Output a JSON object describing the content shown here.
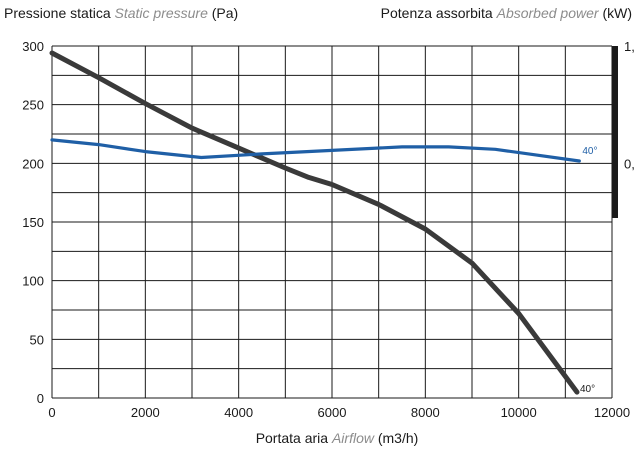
{
  "chart_data": {
    "type": "line",
    "left_axis_label": {
      "it": "Pressione statica",
      "en": "Static pressure",
      "unit": "(Pa)"
    },
    "right_axis_label": {
      "it": "Potenza assorbita",
      "en": "Absorbed power",
      "unit": "(kW)"
    },
    "x_axis_label": {
      "it": "Portata aria",
      "en": "Airflow",
      "unit": "(m3/h)"
    },
    "xlim": [
      0,
      12000
    ],
    "ylim": [
      0,
      300
    ],
    "x_ticks": [
      "0",
      "2000",
      "4000",
      "6000",
      "8000",
      "10000",
      "12000"
    ],
    "y_ticks": [
      "0",
      "50",
      "100",
      "150",
      "200",
      "250",
      "300"
    ],
    "right_ticks": [
      "1,",
      "0,"
    ],
    "grid": true,
    "series": [
      {
        "name": "40°",
        "axis": "left",
        "color": "#3a3a3a",
        "points": [
          [
            0,
            294
          ],
          [
            1000,
            273
          ],
          [
            2000,
            251
          ],
          [
            3000,
            230
          ],
          [
            4000,
            213
          ],
          [
            5000,
            196
          ],
          [
            5500,
            188
          ],
          [
            6000,
            182
          ],
          [
            7000,
            165
          ],
          [
            8000,
            144
          ],
          [
            9000,
            115
          ],
          [
            10000,
            72
          ],
          [
            11250,
            5
          ]
        ]
      },
      {
        "name": "40°",
        "axis": "right",
        "color": "#1f5fa6",
        "points": [
          [
            0,
            220
          ],
          [
            1000,
            216
          ],
          [
            2000,
            210
          ],
          [
            3200,
            205
          ],
          [
            4500,
            208
          ],
          [
            6000,
            211
          ],
          [
            7500,
            214
          ],
          [
            8500,
            214
          ],
          [
            9500,
            212
          ],
          [
            11300,
            202
          ]
        ]
      }
    ]
  }
}
